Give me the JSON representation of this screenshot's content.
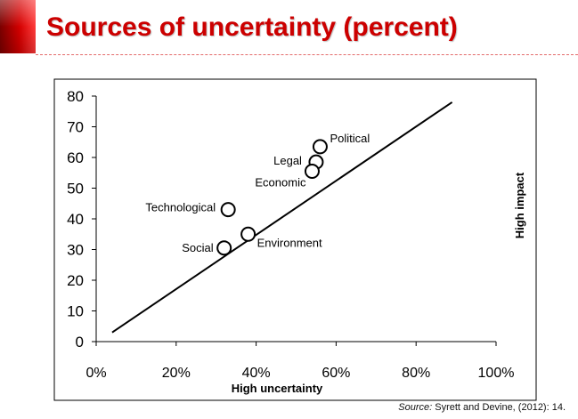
{
  "slide": {
    "title": "Sources of uncertainty (percent)",
    "accent_color": "#cc0000"
  },
  "source": {
    "label": "Source:",
    "text": "Syrett and Devine, (2012): 14."
  },
  "chart_data": {
    "type": "scatter",
    "title": "Sources of uncertainty (percent)",
    "xlabel": "High uncertainty",
    "ylabel": "High impact",
    "xlim": [
      0,
      100
    ],
    "ylim": [
      0,
      80
    ],
    "x_ticks": [
      0,
      20,
      40,
      60,
      80,
      100
    ],
    "x_tick_labels": [
      "0%",
      "20%",
      "40%",
      "60%",
      "80%",
      "100%"
    ],
    "y_ticks": [
      0,
      10,
      20,
      30,
      40,
      50,
      60,
      70,
      80
    ],
    "y_tick_labels": [
      "0",
      "10",
      "20",
      "30",
      "40",
      "50",
      "60",
      "70",
      "80"
    ],
    "grid": false,
    "points": [
      {
        "label": "Political",
        "x": 56,
        "y": 63.5
      },
      {
        "label": "Legal",
        "x": 55,
        "y": 58.5
      },
      {
        "label": "Economic",
        "x": 54,
        "y": 55.5
      },
      {
        "label": "Technological",
        "x": 33,
        "y": 43
      },
      {
        "label": "Environment",
        "x": 38,
        "y": 35
      },
      {
        "label": "Social",
        "x": 32,
        "y": 30.5
      }
    ],
    "trend_line": {
      "x": [
        4,
        89
      ],
      "y": [
        3,
        78
      ]
    }
  }
}
